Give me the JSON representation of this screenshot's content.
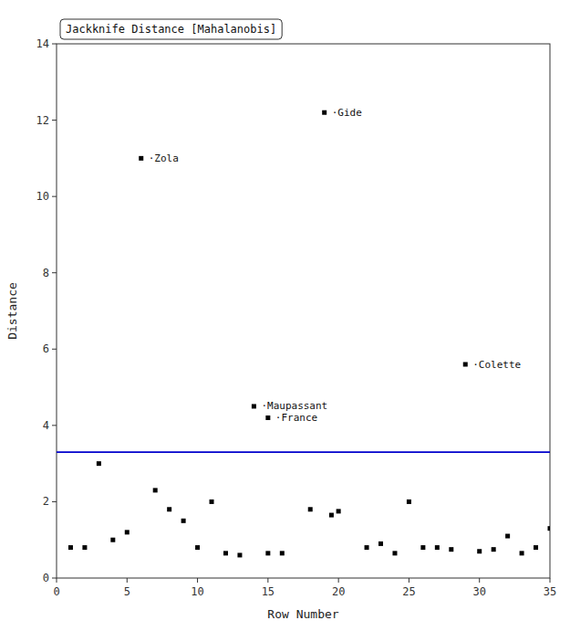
{
  "chart_data": {
    "type": "scatter",
    "title": "Jackknife Distance [Mahalanobis]",
    "x_label": "Row Number",
    "y_label": "Distance",
    "x": [
      1,
      2,
      3,
      4,
      5,
      6,
      7,
      8,
      9,
      10,
      11,
      12,
      13,
      14,
      15,
      16,
      19,
      18,
      19.5,
      20,
      15,
      22,
      23,
      24,
      25,
      26,
      27,
      28,
      29,
      30,
      31,
      32,
      33,
      34,
      35
    ],
    "values": [
      0.8,
      0.8,
      3.0,
      1.0,
      1.2,
      11.0,
      2.3,
      1.8,
      1.5,
      0.8,
      2.0,
      0.65,
      0.6,
      4.5,
      0.65,
      0.65,
      12.2,
      1.8,
      1.65,
      1.75,
      4.2,
      0.8,
      0.9,
      0.65,
      2.0,
      0.8,
      0.8,
      0.75,
      5.6,
      0.7,
      0.75,
      1.1,
      0.65,
      0.8,
      1.3
    ],
    "color": "#000000",
    "marker": "square",
    "threshold": {
      "value": 3.3,
      "color": "#0000cc"
    },
    "annotations": [
      {
        "text": "·Zola",
        "x": 6,
        "y": 11.0
      },
      {
        "text": "·Gide",
        "x": 19,
        "y": 12.2
      },
      {
        "text": "·Maupassant",
        "x": 14,
        "y": 4.5
      },
      {
        "text": "·France",
        "x": 15,
        "y": 4.2
      },
      {
        "text": "·Colette",
        "x": 29,
        "y": 5.6
      }
    ],
    "xlim": [
      0,
      35
    ],
    "ylim": [
      0,
      14
    ],
    "xticks": [
      0,
      5,
      10,
      15,
      20,
      25,
      30,
      35
    ],
    "yticks": [
      0,
      2,
      4,
      6,
      8,
      10,
      12,
      14
    ],
    "grid": false
  }
}
